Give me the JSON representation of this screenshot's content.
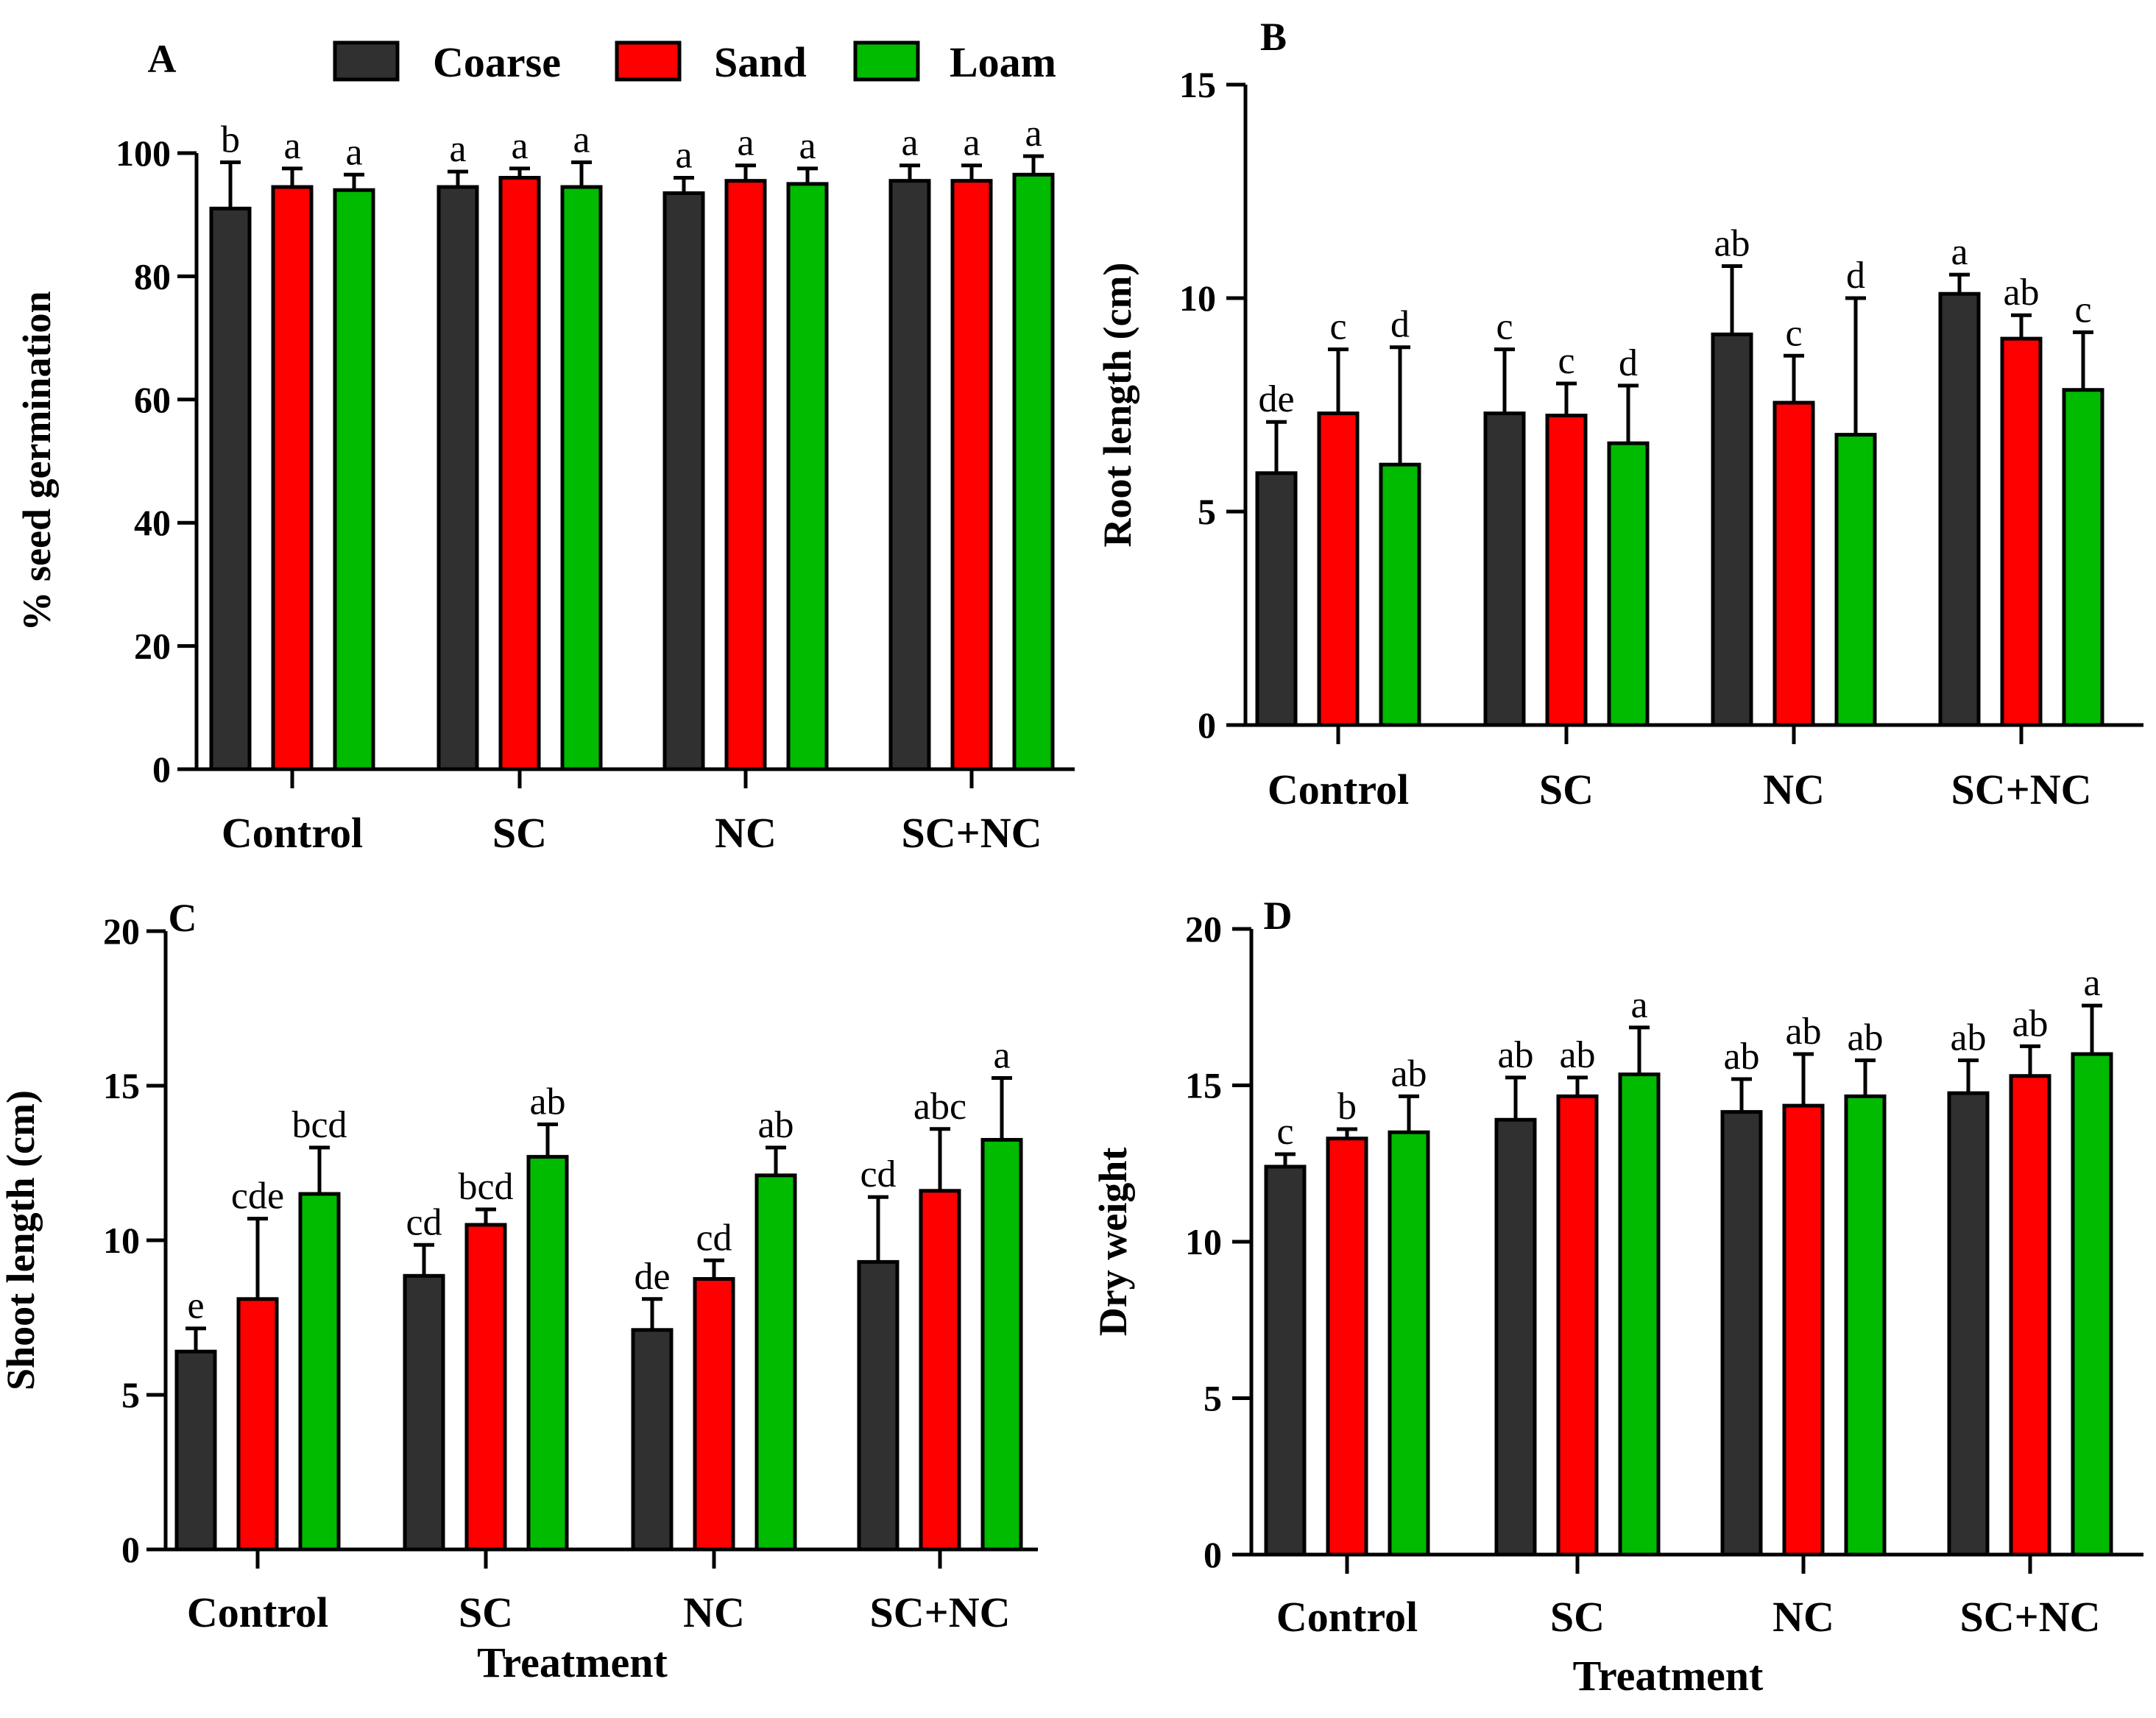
{
  "legend": {
    "entries": [
      {
        "name": "Coarse",
        "color": "#303030"
      },
      {
        "name": "Sand",
        "color": "#ff0000"
      },
      {
        "name": "Loam",
        "color": "#00bb00"
      }
    ]
  },
  "chart_data": [
    {
      "panel": "A",
      "type": "bar",
      "ylabel": "% seed germination",
      "xlabel": "",
      "categories": [
        "Control",
        "SC",
        "NC",
        "SC+NC"
      ],
      "ylim": [
        0,
        100
      ],
      "yticks": [
        0,
        20,
        40,
        60,
        80,
        100
      ],
      "series": [
        {
          "name": "Coarse",
          "values": [
            91,
            94.5,
            93.5,
            95.5
          ],
          "errors": [
            7.5,
            2.5,
            2.5,
            2.5
          ],
          "labels": [
            "b",
            "a",
            "a",
            "a"
          ]
        },
        {
          "name": "Sand",
          "values": [
            94.5,
            96,
            95.5,
            95.5
          ],
          "errors": [
            3,
            1.5,
            2.5,
            2.5
          ],
          "labels": [
            "a",
            "a",
            "a",
            "a"
          ]
        },
        {
          "name": "Loam",
          "values": [
            94,
            94.5,
            95,
            96.5
          ],
          "errors": [
            2.5,
            4,
            2.5,
            3
          ],
          "labels": [
            "a",
            "a",
            "a",
            "a"
          ]
        }
      ]
    },
    {
      "panel": "B",
      "type": "bar",
      "ylabel": "Root length (cm)",
      "xlabel": "",
      "categories": [
        "Control",
        "SC",
        "NC",
        "SC+NC"
      ],
      "ylim": [
        0,
        15
      ],
      "yticks": [
        0,
        5,
        10,
        15
      ],
      "series": [
        {
          "name": "Coarse",
          "values": [
            5.9,
            7.3,
            9.15,
            10.1
          ],
          "errors": [
            1.2,
            1.5,
            1.6,
            0.45
          ],
          "labels": [
            "de",
            "c",
            "ab",
            "a"
          ]
        },
        {
          "name": "Sand",
          "values": [
            7.3,
            7.25,
            7.55,
            9.05
          ],
          "errors": [
            1.5,
            0.75,
            1.1,
            0.55
          ],
          "labels": [
            "c",
            "c",
            "c",
            "ab"
          ]
        },
        {
          "name": "Loam",
          "values": [
            6.1,
            6.6,
            6.8,
            7.85
          ],
          "errors": [
            2.75,
            1.35,
            3.2,
            1.35
          ],
          "labels": [
            "d",
            "d",
            "d",
            "c"
          ]
        }
      ]
    },
    {
      "panel": "C",
      "type": "bar",
      "ylabel": "Shoot length (cm)",
      "xlabel": "Treatment",
      "categories": [
        "Control",
        "SC",
        "NC",
        "SC+NC"
      ],
      "ylim": [
        0,
        20
      ],
      "yticks": [
        0,
        5,
        10,
        15,
        20
      ],
      "series": [
        {
          "name": "Coarse",
          "values": [
            6.4,
            8.85,
            7.1,
            9.3
          ],
          "errors": [
            0.75,
            1,
            1,
            2.1
          ],
          "labels": [
            "e",
            "cd",
            "de",
            "cd"
          ]
        },
        {
          "name": "Sand",
          "values": [
            8.1,
            10.5,
            8.75,
            11.6
          ],
          "errors": [
            2.6,
            0.5,
            0.6,
            2
          ],
          "labels": [
            "cde",
            "bcd",
            "cd",
            "abc"
          ]
        },
        {
          "name": "Loam",
          "values": [
            11.5,
            12.7,
            12.1,
            13.25
          ],
          "errors": [
            1.5,
            1.05,
            0.9,
            2
          ],
          "labels": [
            "bcd",
            "ab",
            "ab",
            "a"
          ]
        }
      ]
    },
    {
      "panel": "D",
      "type": "bar",
      "ylabel": "Dry weight",
      "xlabel": "Treatment",
      "categories": [
        "Control",
        "SC",
        "NC",
        "SC+NC"
      ],
      "ylim": [
        0,
        20
      ],
      "yticks": [
        0,
        5,
        10,
        15,
        20
      ],
      "series": [
        {
          "name": "Coarse",
          "values": [
            12.4,
            13.9,
            14.15,
            14.75
          ],
          "errors": [
            0.4,
            1.35,
            1.05,
            1.05
          ],
          "labels": [
            "c",
            "ab",
            "ab",
            "ab"
          ]
        },
        {
          "name": "Sand",
          "values": [
            13.3,
            14.65,
            14.35,
            15.3
          ],
          "errors": [
            0.3,
            0.6,
            1.65,
            0.95
          ],
          "labels": [
            "b",
            "ab",
            "ab",
            "ab"
          ]
        },
        {
          "name": "Loam",
          "values": [
            13.5,
            15.35,
            14.65,
            16
          ],
          "errors": [
            1.15,
            1.5,
            1.15,
            1.55
          ],
          "labels": [
            "ab",
            "a",
            "ab",
            "a"
          ]
        }
      ]
    }
  ]
}
